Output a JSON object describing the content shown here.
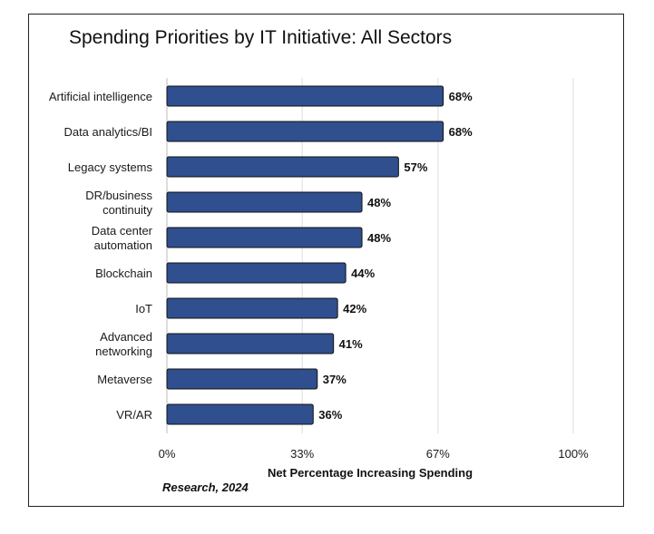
{
  "chart_data": {
    "type": "bar",
    "orientation": "horizontal",
    "title": "Spending Priorities by IT Initiative: All Sectors",
    "xlabel": "Net Percentage Increasing Spending",
    "ylabel": "",
    "categories": [
      [
        "Artificial intelligence"
      ],
      [
        "Data analytics/BI"
      ],
      [
        "Legacy systems"
      ],
      [
        "DR/business",
        "continuity"
      ],
      [
        "Data center",
        "automation"
      ],
      [
        "Blockchain"
      ],
      [
        "IoT"
      ],
      [
        "Advanced",
        "networking"
      ],
      [
        "Metaverse"
      ],
      [
        "VR/AR"
      ]
    ],
    "values": [
      68,
      68,
      57,
      48,
      48,
      44,
      42,
      41,
      37,
      36
    ],
    "data_labels": [
      "68%",
      "68%",
      "57%",
      "48%",
      "48%",
      "44%",
      "42%",
      "41%",
      "37%",
      "36%"
    ],
    "xlim": [
      0,
      100
    ],
    "xticks": [
      0,
      33.3,
      66.7,
      100
    ],
    "xtick_labels": [
      "0%",
      "33%",
      "67%",
      "100%"
    ],
    "grid": true,
    "legend": "none",
    "colors": {
      "bar": "#2f4f8f",
      "bar_edge": "#111111",
      "grid": "#dddddd"
    }
  },
  "source_text": "Research, 2024"
}
